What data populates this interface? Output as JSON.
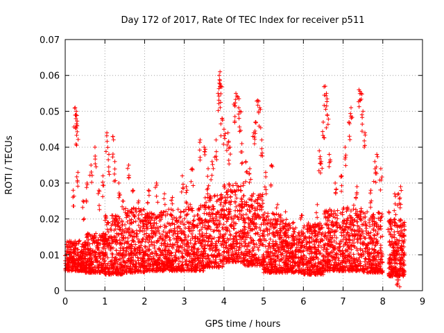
{
  "chart_data": {
    "type": "scatter",
    "title": "Day 172 of 2017, Rate Of TEC Index for receiver p511",
    "xlabel": "GPS time / hours",
    "ylabel": "ROTI / TECUs",
    "xlim": [
      0,
      9
    ],
    "ylim": [
      0,
      0.07
    ],
    "x_ticks": [
      "0",
      "1",
      "2",
      "3",
      "4",
      "5",
      "6",
      "7",
      "8",
      "9"
    ],
    "y_ticks": [
      "0",
      "0.01",
      "0.02",
      "0.03",
      "0.04",
      "0.05",
      "0.06",
      "0.07"
    ],
    "grid": true,
    "marker": "plus",
    "series": [
      {
        "name": "ROTI",
        "color": "#ff0000",
        "points": [
          [
            0.25,
            0.051
          ],
          [
            0.27,
            0.049
          ],
          [
            0.3,
            0.046
          ],
          [
            0.28,
            0.05
          ],
          [
            0.2,
            0.028
          ],
          [
            0.32,
            0.033
          ],
          [
            0.45,
            0.025
          ],
          [
            0.55,
            0.03
          ],
          [
            0.65,
            0.035
          ],
          [
            0.75,
            0.04
          ],
          [
            0.85,
            0.028
          ],
          [
            0.95,
            0.032
          ],
          [
            1.05,
            0.044
          ],
          [
            1.1,
            0.038
          ],
          [
            1.2,
            0.043
          ],
          [
            1.25,
            0.036
          ],
          [
            1.35,
            0.03
          ],
          [
            1.45,
            0.025
          ],
          [
            1.6,
            0.035
          ],
          [
            1.7,
            0.028
          ],
          [
            1.85,
            0.025
          ],
          [
            2.1,
            0.028
          ],
          [
            2.3,
            0.03
          ],
          [
            2.5,
            0.027
          ],
          [
            2.7,
            0.026
          ],
          [
            2.95,
            0.032
          ],
          [
            3.05,
            0.029
          ],
          [
            3.2,
            0.034
          ],
          [
            3.4,
            0.042
          ],
          [
            3.5,
            0.04
          ],
          [
            3.6,
            0.034
          ],
          [
            3.7,
            0.036
          ],
          [
            3.8,
            0.042
          ],
          [
            3.85,
            0.055
          ],
          [
            3.88,
            0.06
          ],
          [
            3.9,
            0.061
          ],
          [
            3.92,
            0.057
          ],
          [
            3.95,
            0.048
          ],
          [
            4.0,
            0.045
          ],
          [
            4.1,
            0.044
          ],
          [
            4.15,
            0.04
          ],
          [
            4.25,
            0.052
          ],
          [
            4.3,
            0.055
          ],
          [
            4.35,
            0.054
          ],
          [
            4.4,
            0.05
          ],
          [
            4.45,
            0.041
          ],
          [
            4.55,
            0.036
          ],
          [
            4.65,
            0.034
          ],
          [
            4.75,
            0.044
          ],
          [
            4.8,
            0.047
          ],
          [
            4.85,
            0.053
          ],
          [
            4.9,
            0.051
          ],
          [
            4.95,
            0.042
          ],
          [
            5.05,
            0.033
          ],
          [
            5.2,
            0.035
          ],
          [
            5.35,
            0.024
          ],
          [
            5.55,
            0.022
          ],
          [
            5.75,
            0.019
          ],
          [
            5.95,
            0.021
          ],
          [
            6.15,
            0.018
          ],
          [
            6.35,
            0.024
          ],
          [
            6.4,
            0.039
          ],
          [
            6.45,
            0.036
          ],
          [
            6.5,
            0.047
          ],
          [
            6.55,
            0.057
          ],
          [
            6.58,
            0.055
          ],
          [
            6.6,
            0.049
          ],
          [
            6.65,
            0.038
          ],
          [
            6.8,
            0.03
          ],
          [
            6.95,
            0.032
          ],
          [
            7.05,
            0.04
          ],
          [
            7.15,
            0.047
          ],
          [
            7.2,
            0.051
          ],
          [
            7.35,
            0.029
          ],
          [
            7.4,
            0.056
          ],
          [
            7.45,
            0.055
          ],
          [
            7.5,
            0.05
          ],
          [
            7.55,
            0.044
          ],
          [
            7.7,
            0.028
          ],
          [
            7.8,
            0.036
          ],
          [
            7.85,
            0.038
          ],
          [
            7.95,
            0.034
          ],
          [
            8.15,
            0.022
          ],
          [
            8.3,
            0.027
          ],
          [
            8.4,
            0.027
          ],
          [
            8.45,
            0.029
          ],
          [
            8.4,
            0.003
          ],
          [
            8.35,
            0.005
          ]
        ],
        "bulk": [
          [
            0.0,
            0.5,
            0.0055,
            0.014
          ],
          [
            0.5,
            1.0,
            0.005,
            0.016
          ],
          [
            1.0,
            1.5,
            0.0045,
            0.021
          ],
          [
            1.5,
            2.0,
            0.005,
            0.023
          ],
          [
            2.0,
            2.5,
            0.0055,
            0.022
          ],
          [
            2.5,
            3.0,
            0.0055,
            0.023
          ],
          [
            3.0,
            3.5,
            0.0055,
            0.024
          ],
          [
            3.5,
            4.0,
            0.0065,
            0.027
          ],
          [
            4.0,
            4.5,
            0.008,
            0.03
          ],
          [
            4.5,
            5.0,
            0.007,
            0.027
          ],
          [
            5.0,
            5.5,
            0.005,
            0.022
          ],
          [
            5.5,
            6.0,
            0.005,
            0.019
          ],
          [
            6.0,
            6.5,
            0.0045,
            0.019
          ],
          [
            6.5,
            7.0,
            0.0055,
            0.023
          ],
          [
            7.0,
            7.5,
            0.0055,
            0.024
          ],
          [
            7.5,
            8.0,
            0.005,
            0.022
          ],
          [
            8.15,
            8.55,
            0.004,
            0.02
          ]
        ]
      }
    ]
  }
}
